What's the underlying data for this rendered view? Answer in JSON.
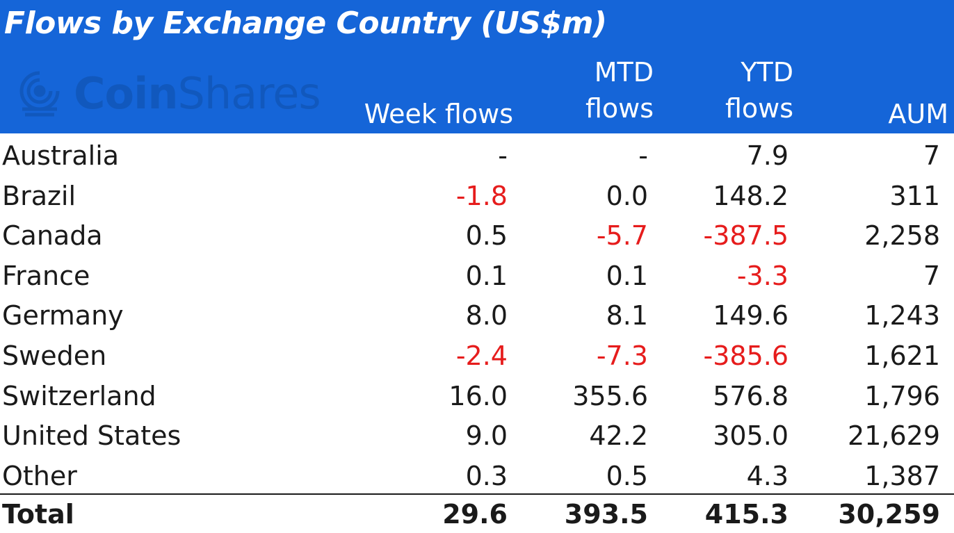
{
  "title": "Flows by Exchange Country (US$m)",
  "brand": {
    "part1": "Coin",
    "part2": "Shares",
    "color": "#0e4fa8"
  },
  "colors": {
    "header_bg": "#1565d8",
    "negative": "#e61c1c"
  },
  "headers": {
    "week": [
      "",
      "Week flows"
    ],
    "mtd": [
      "MTD",
      "flows"
    ],
    "ytd": [
      "YTD",
      "flows"
    ],
    "aum": [
      "",
      "AUM"
    ]
  },
  "rows": [
    {
      "country": "Australia",
      "week": "-",
      "mtd": "-",
      "ytd": "7.9",
      "aum": "7"
    },
    {
      "country": "Brazil",
      "week": "-1.8",
      "mtd": "0.0",
      "ytd": "148.2",
      "aum": "311"
    },
    {
      "country": "Canada",
      "week": "0.5",
      "mtd": "-5.7",
      "ytd": "-387.5",
      "aum": "2,258"
    },
    {
      "country": "France",
      "week": "0.1",
      "mtd": "0.1",
      "ytd": "-3.3",
      "aum": "7"
    },
    {
      "country": "Germany",
      "week": "8.0",
      "mtd": "8.1",
      "ytd": "149.6",
      "aum": "1,243"
    },
    {
      "country": "Sweden",
      "week": "-2.4",
      "mtd": "-7.3",
      "ytd": "-385.6",
      "aum": "1,621"
    },
    {
      "country": "Switzerland",
      "week": "16.0",
      "mtd": "355.6",
      "ytd": "576.8",
      "aum": "1,796"
    },
    {
      "country": "United States",
      "week": "9.0",
      "mtd": "42.2",
      "ytd": "305.0",
      "aum": "21,629"
    },
    {
      "country": "Other",
      "week": "0.3",
      "mtd": "0.5",
      "ytd": "4.3",
      "aum": "1,387"
    }
  ],
  "total": {
    "label": "Total",
    "week": "29.6",
    "mtd": "393.5",
    "ytd": "415.3",
    "aum": "30,259"
  }
}
